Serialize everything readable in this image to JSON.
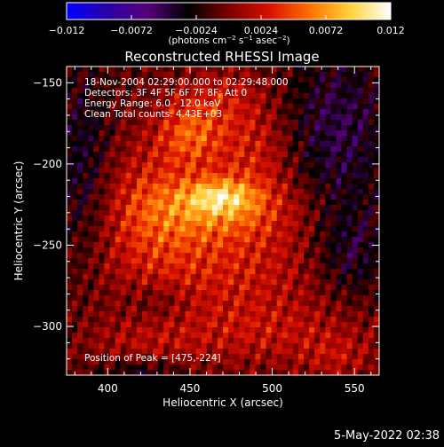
{
  "chart_data": {
    "type": "heatmap",
    "title": "Reconstructed RHESSI Image",
    "xlabel": "Heliocentric X (arcsec)",
    "ylabel": "Heliocentric Y (arcsec)",
    "xlim": [
      375,
      565
    ],
    "ylim": [
      -330,
      -140
    ],
    "x_ticks": [
      400,
      450,
      500,
      550
    ],
    "y_ticks": [
      -150,
      -200,
      -250,
      -300
    ],
    "colorbar": {
      "range": [
        -0.012,
        0.012
      ],
      "tick_values": [
        -0.012,
        -0.0072,
        -0.0024,
        0.0024,
        0.0072,
        0.012
      ],
      "tick_labels": [
        "−0.012",
        "−0.0072",
        "−0.0024",
        "0.0024",
        "0.0072",
        "0.012"
      ],
      "unit_parts": [
        "(photons cm",
        "−2",
        " s",
        "−1",
        " asec",
        "−2",
        ")"
      ],
      "colormap": [
        "#0000ff",
        "#2a00a8",
        "#550077",
        "#000000",
        "#7a0000",
        "#d81000",
        "#ff7000",
        "#ffd23a",
        "#ffffff"
      ]
    },
    "annotations": [
      "18-Nov-2004 02:29:00.000 to 02:29:48.000",
      "Detectors: 3F 4F 5F 6F 7F 8F; Att 0",
      "Energy Range: 6.0 - 12.0 keV",
      "Clean     Total counts: 4.43E+03",
      "Position of Peak = [475,-224]"
    ],
    "peak": {
      "x": 475,
      "y": -224,
      "value": 0.012
    },
    "sources": [
      {
        "x": 468,
        "y": -220,
        "sx": 14,
        "sy": 7,
        "amp": 0.0048
      },
      {
        "x": 470,
        "y": -226,
        "sx": 30,
        "sy": 14,
        "amp": 0.0056
      },
      {
        "x": 450,
        "y": -182,
        "sx": 14,
        "sy": 14,
        "amp": 0.005
      },
      {
        "x": 488,
        "y": -192,
        "sx": 18,
        "sy": 18,
        "amp": 0.0034
      },
      {
        "x": 470,
        "y": -262,
        "sx": 45,
        "sy": 24,
        "amp": 0.0038
      },
      {
        "x": 425,
        "y": -225,
        "sx": 22,
        "sy": 30,
        "amp": 0.0038
      },
      {
        "x": 500,
        "y": -305,
        "sx": 45,
        "sy": 15,
        "amp": 0.0026
      },
      {
        "x": 420,
        "y": -312,
        "sx": 28,
        "sy": 14,
        "amp": 0.002
      },
      {
        "x": 470,
        "y": -160,
        "sx": 20,
        "sy": 14,
        "amp": 0.003
      },
      {
        "x": 540,
        "y": -320,
        "sx": 15,
        "sy": 10,
        "amp": 0.002
      }
    ],
    "negative_regions": [
      {
        "x": 385,
        "y": -200,
        "sx": 12,
        "sy": 40,
        "amp": -0.003
      },
      {
        "x": 540,
        "y": -180,
        "sx": 22,
        "sy": 35,
        "amp": -0.0036
      },
      {
        "x": 548,
        "y": -255,
        "sx": 16,
        "sy": 20,
        "amp": -0.0032
      },
      {
        "x": 420,
        "y": -330,
        "sx": 18,
        "sy": 8,
        "amp": -0.0032
      },
      {
        "x": 430,
        "y": -285,
        "sx": 15,
        "sy": 10,
        "amp": -0.0018
      }
    ],
    "timestamp": "5-May-2022 02:38"
  }
}
